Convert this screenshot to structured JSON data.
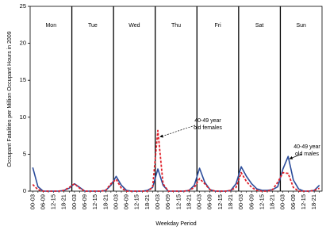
{
  "chart_data": {
    "type": "line",
    "y_label": "Occupant Fatalities per Million Occupant Hours in 2009",
    "x_label": "Weekday Period",
    "day_labels": [
      "Mon",
      "Tue",
      "Wed",
      "Thu",
      "Fri",
      "Sat",
      "Sun"
    ],
    "categories": [
      "00-03",
      null,
      "06-09",
      null,
      "12-15",
      null,
      "18-21",
      null,
      "00-03",
      null,
      "06-09",
      null,
      "12-15",
      null,
      "18-21",
      null,
      "00-03",
      null,
      "06-09",
      null,
      "12-15",
      null,
      "18-21",
      null,
      "00-03",
      null,
      "06-09",
      null,
      "12-15",
      null,
      "18-21",
      null,
      "00-03",
      null,
      "06-09",
      null,
      "12-15",
      null,
      "18-21",
      null,
      "00-03",
      null,
      "06-09",
      null,
      "12-15",
      null,
      "18-21",
      null,
      "00-03",
      null,
      "06-09",
      null,
      "12-15",
      null,
      "18-21",
      null
    ],
    "series": [
      {
        "name": "40-49 year old males",
        "color": "#2b4c9b",
        "dash": false,
        "values": [
          3.2,
          0.6,
          0,
          0,
          0,
          0,
          0.1,
          0.4,
          1.0,
          0.5,
          0,
          0,
          0,
          0,
          0.1,
          0.8,
          2.0,
          0.8,
          0.1,
          0,
          0,
          0,
          0.1,
          0.5,
          3.0,
          0.8,
          0,
          0,
          0,
          0,
          0.1,
          0.8,
          3.1,
          1.2,
          0.2,
          0,
          0,
          0,
          0.1,
          1.0,
          3.3,
          2.0,
          1.0,
          0.3,
          0.1,
          0.1,
          0.2,
          0.6,
          3.0,
          4.7,
          1.5,
          0.3,
          0,
          0,
          0.1,
          0.8
        ]
      },
      {
        "name": "40-49 year old females",
        "color": "#e0202a",
        "dash": true,
        "values": [
          0.9,
          0.2,
          0,
          0,
          0,
          0,
          0.1,
          0.5,
          1.0,
          0.4,
          0,
          0,
          0,
          0,
          0.1,
          1.0,
          1.6,
          0.4,
          0,
          0,
          0,
          0,
          0,
          0.5,
          8.2,
          1.0,
          0,
          0,
          0,
          0,
          0.1,
          0.5,
          1.7,
          1.0,
          0.2,
          0,
          0,
          0,
          0.1,
          0.5,
          2.5,
          1.3,
          0.5,
          0.1,
          0,
          0,
          0.2,
          1.2,
          2.5,
          2.4,
          0.5,
          0,
          0,
          0,
          0.1,
          0.4
        ]
      }
    ],
    "annotations": [
      {
        "lines": [
          "40-49 year",
          "old females"
        ],
        "series": 1,
        "point": 24
      },
      {
        "lines": [
          "40-49 year",
          "old males"
        ],
        "series": 0,
        "point": 49
      }
    ],
    "ylim": [
      0,
      25
    ],
    "yticks": [
      0,
      5,
      10,
      15,
      20,
      25
    ]
  }
}
